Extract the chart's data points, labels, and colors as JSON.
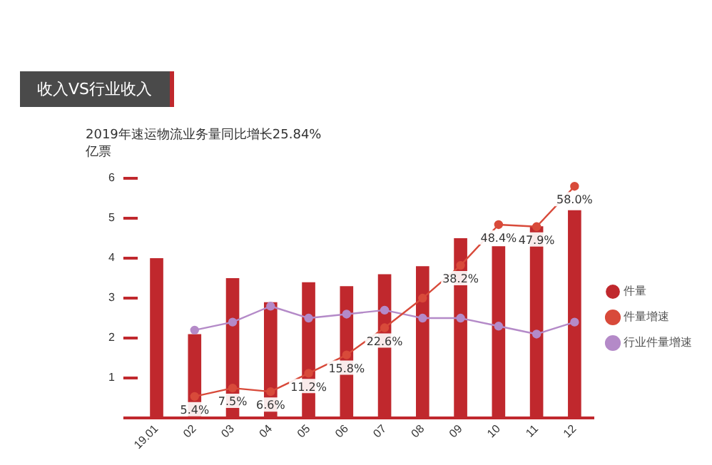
{
  "chart_data": {
    "type": "bar",
    "title": "收入VS行业收入",
    "subtitle": "2019年速运物流业务量同比增长25.84%",
    "ylabel": "亿票",
    "categories": [
      "19.01",
      "02",
      "03",
      "04",
      "05",
      "06",
      "07",
      "08",
      "09",
      "10",
      "11",
      "12"
    ],
    "series": [
      {
        "name": "件量",
        "color": "#c0282d",
        "values": [
          4.0,
          2.1,
          3.5,
          2.9,
          3.4,
          3.3,
          3.6,
          3.8,
          4.5,
          4.3,
          4.8,
          5.2
        ]
      },
      {
        "name": "件量增速",
        "type": "line",
        "axis": "y2",
        "color": "#d84a3a",
        "values": [
          null,
          5.4,
          7.5,
          6.6,
          11.2,
          15.8,
          22.6,
          30,
          38.2,
          48.4,
          47.9,
          58.0
        ],
        "value_labels": [
          null,
          "5.4%",
          "7.5%",
          "6.6%",
          "11.2%",
          "15.8%",
          "22.6%",
          null,
          "38.2%",
          "48.4%",
          "47.9%",
          "58.0%"
        ]
      },
      {
        "name": "行业件量增速",
        "type": "line",
        "axis": "y2",
        "color": "#b48ac8",
        "values": [
          null,
          22,
          24,
          28,
          25,
          26,
          27,
          25,
          25,
          23,
          21,
          24
        ]
      }
    ],
    "ylim": [
      0,
      6
    ],
    "yticks": [
      {
        "value": 0,
        "label": null
      },
      1,
      2,
      3,
      4,
      5,
      6
    ],
    "tick_labels": "xy",
    "grid": false,
    "legend": "right",
    "marker": "circle"
  }
}
